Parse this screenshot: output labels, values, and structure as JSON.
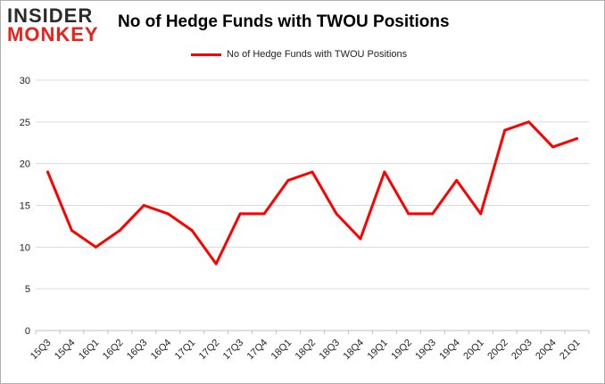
{
  "brand": {
    "logo_top": "INSIDER",
    "logo_bottom": "MONKEY"
  },
  "chart_data": {
    "type": "line",
    "title": "No of Hedge Funds with TWOU Positions",
    "legend_position": "top-center",
    "grid": true,
    "categories": [
      "15Q3",
      "15Q4",
      "16Q1",
      "16Q2",
      "16Q3",
      "16Q4",
      "17Q1",
      "17Q2",
      "17Q3",
      "17Q4",
      "18Q1",
      "18Q2",
      "18Q3",
      "18Q4",
      "19Q1",
      "19Q2",
      "19Q3",
      "19Q4",
      "20Q1",
      "20Q2",
      "20Q3",
      "20Q4",
      "21Q1"
    ],
    "series": [
      {
        "name": "No of Hedge Funds with TWOU Positions",
        "color": "#ff0000",
        "values": [
          19,
          12,
          10,
          12,
          15,
          14,
          12,
          8,
          14,
          14,
          18,
          19,
          14,
          11,
          19,
          14,
          14,
          18,
          14,
          24,
          25,
          22,
          23
        ]
      }
    ],
    "ylim": [
      0,
      30
    ],
    "yticks": [
      0,
      5,
      10,
      15,
      20,
      25,
      30
    ],
    "xlabel": "",
    "ylabel": ""
  }
}
